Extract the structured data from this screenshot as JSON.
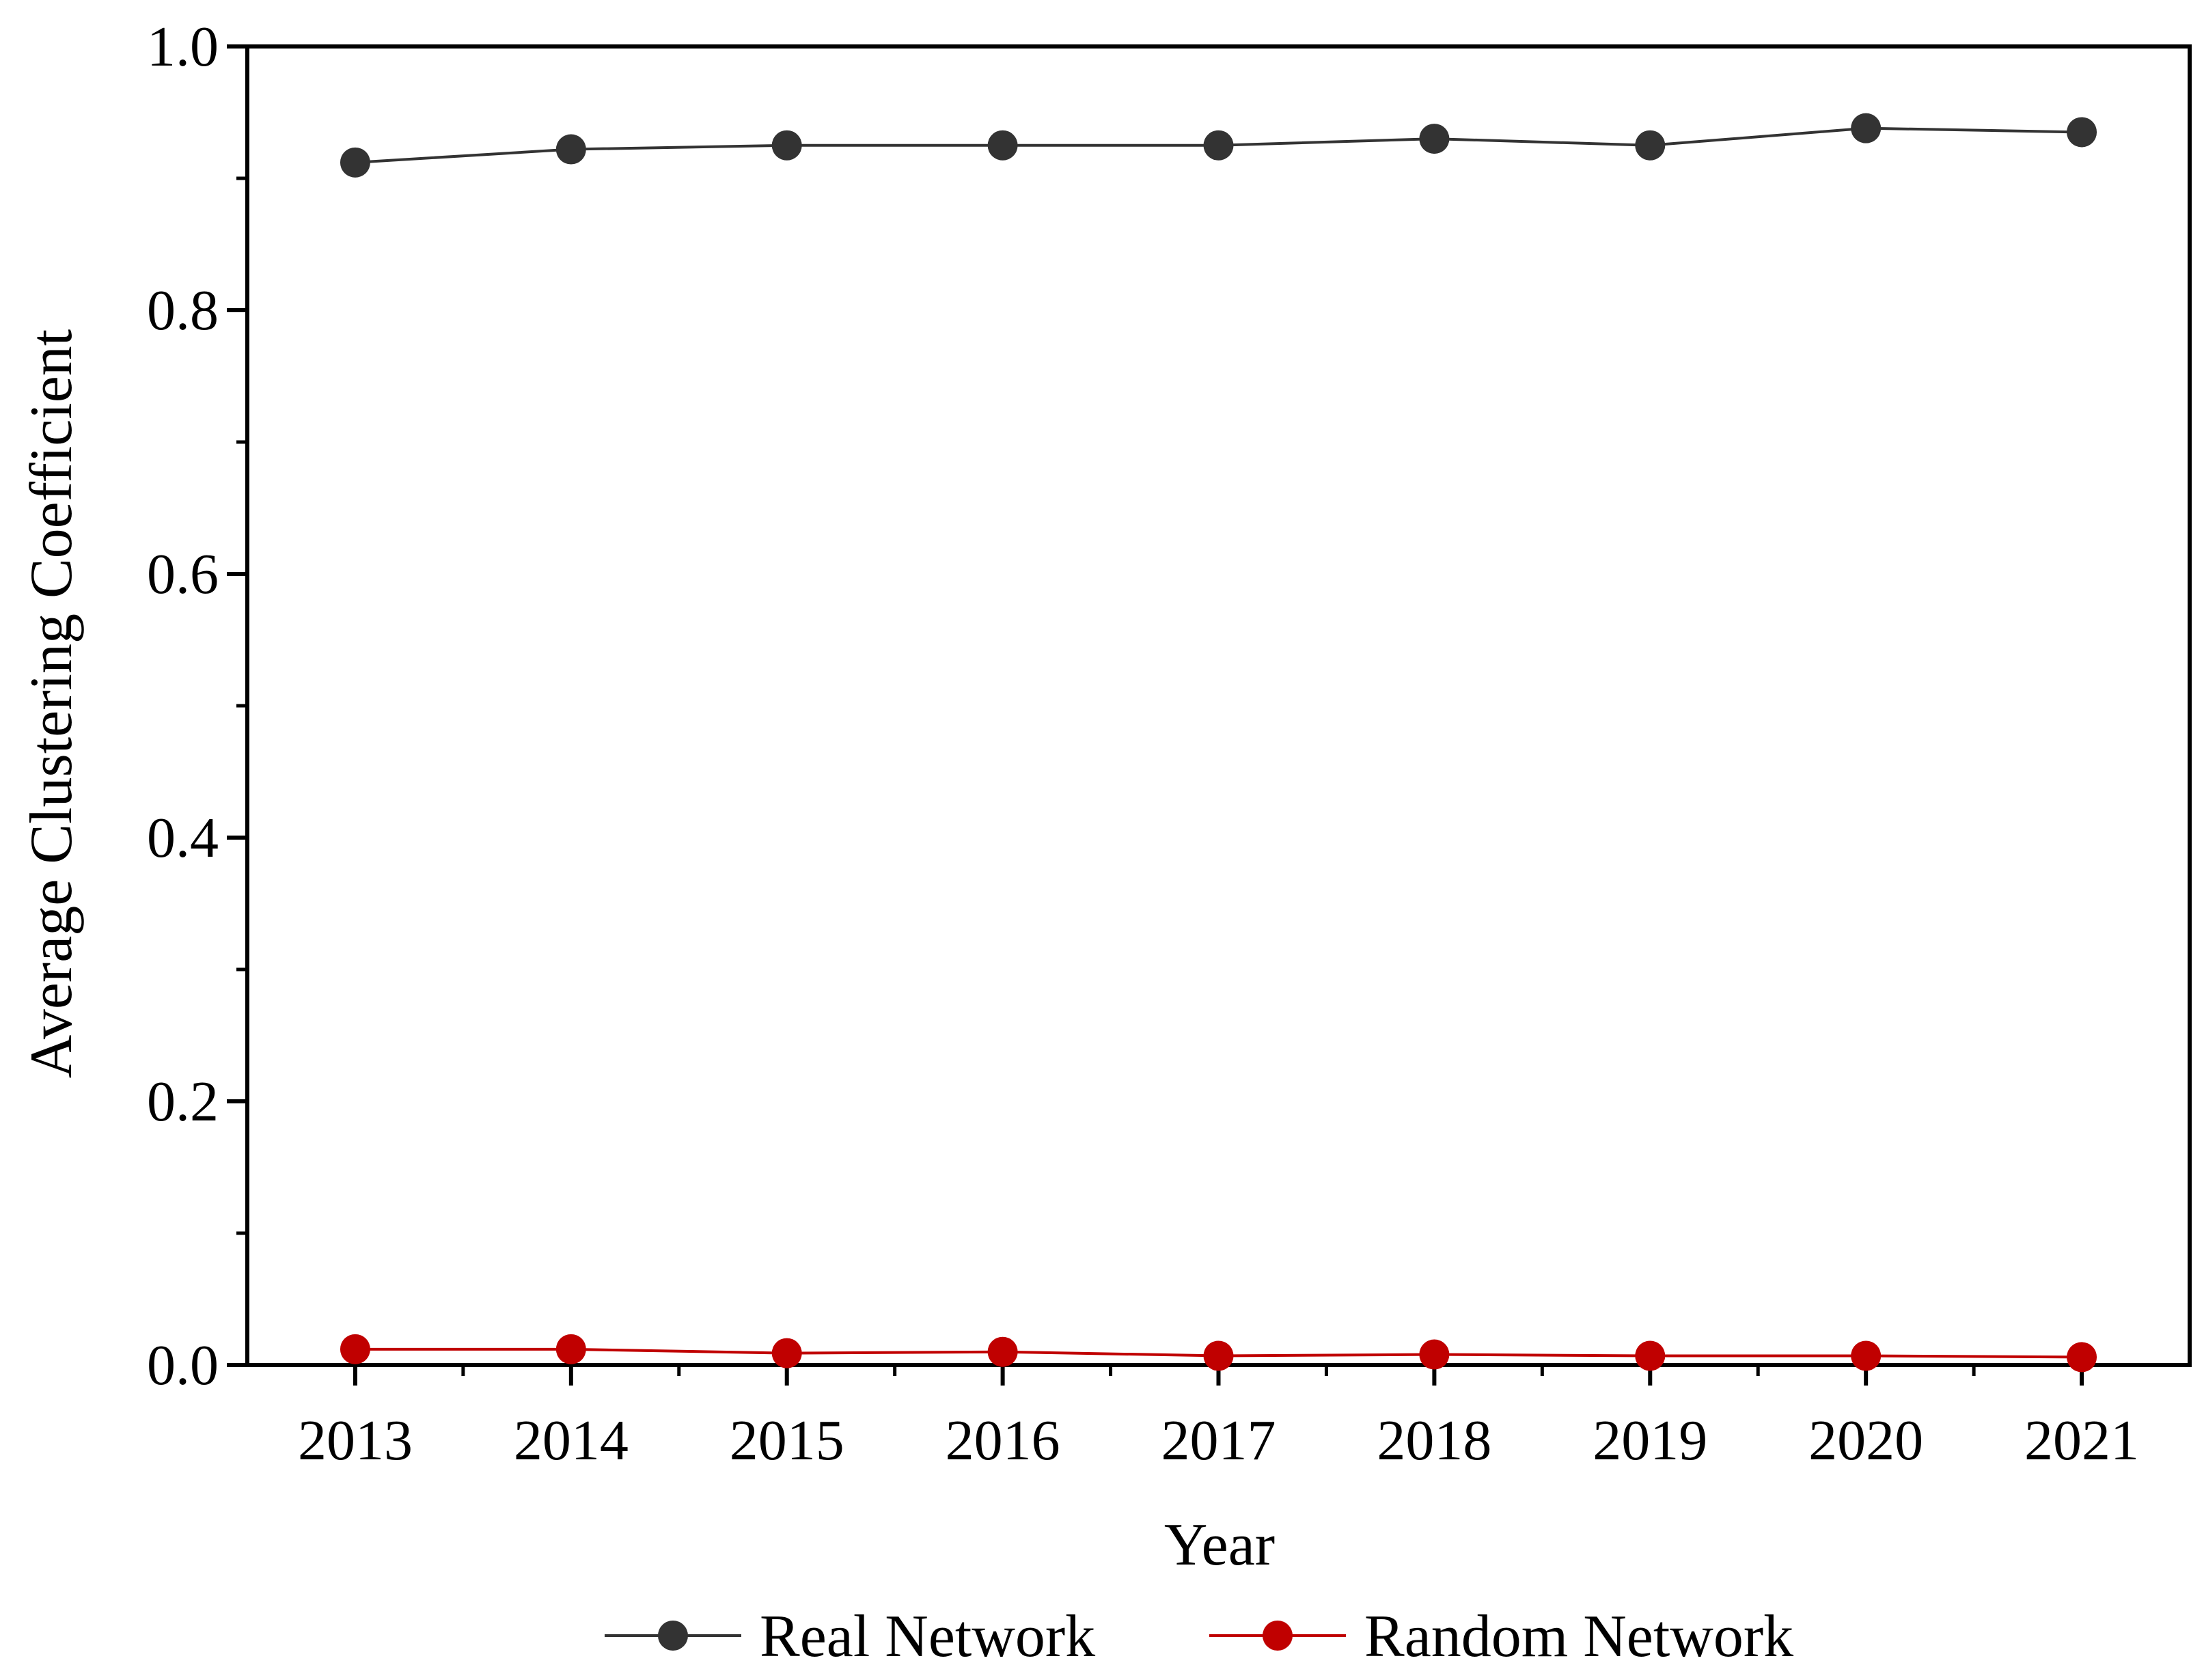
{
  "chart_data": {
    "type": "line",
    "title": "",
    "xlabel": "Year",
    "ylabel": "Average Clustering Coefficient",
    "x": [
      2013,
      2014,
      2015,
      2016,
      2017,
      2018,
      2019,
      2020,
      2021
    ],
    "x_tick_labels": [
      "2013",
      "2014",
      "2015",
      "2016",
      "2017",
      "2018",
      "2019",
      "2020",
      "2021"
    ],
    "ylim": [
      0.0,
      1.0
    ],
    "y_ticks": [
      0.0,
      0.2,
      0.4,
      0.6,
      0.8,
      1.0
    ],
    "y_tick_labels": [
      "0.0",
      "0.2",
      "0.4",
      "0.6",
      "0.8",
      "1.0"
    ],
    "grid": false,
    "legend_position": "bottom",
    "series": [
      {
        "name": "Real Network",
        "color": "#333333",
        "values": [
          0.912,
          0.922,
          0.925,
          0.925,
          0.925,
          0.93,
          0.925,
          0.938,
          0.935
        ]
      },
      {
        "name": "Random Network",
        "color": "#c00000",
        "values": [
          0.012,
          0.012,
          0.009,
          0.01,
          0.007,
          0.008,
          0.007,
          0.007,
          0.006
        ]
      }
    ]
  }
}
